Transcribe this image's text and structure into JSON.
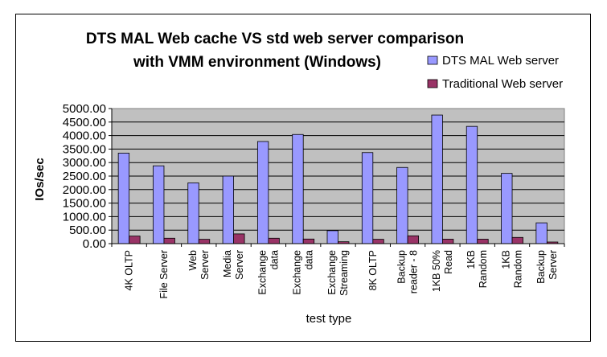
{
  "chart_data": {
    "type": "bar",
    "title_lines": [
      "DTS MAL Web cache VS std web server comparison",
      "with VMM environment (Windows)"
    ],
    "xlabel": "test type",
    "ylabel": "IOs/sec",
    "ylim": [
      0,
      5000
    ],
    "ytick_step": 500,
    "ytick_labels": [
      "0.00",
      "500.00",
      "1000.00",
      "1500.00",
      "2000.00",
      "2500.00",
      "3000.00",
      "3500.00",
      "4000.00",
      "4500.00",
      "5000.00"
    ],
    "grid": true,
    "legend_position": "top-right",
    "categories": [
      [
        "4K OLTP"
      ],
      [
        "File Server"
      ],
      [
        "Web",
        "Server"
      ],
      [
        "Media",
        "Server"
      ],
      [
        "Exchange",
        "data"
      ],
      [
        "Exchange",
        "data"
      ],
      [
        "Exchange",
        "Streaming"
      ],
      [
        "8K OLTP"
      ],
      [
        "Backup",
        "reader - 8"
      ],
      [
        "1KB 50%",
        "Read"
      ],
      [
        "1KB",
        "Random"
      ],
      [
        "1KB",
        "Random"
      ],
      [
        "Backup",
        "Server"
      ]
    ],
    "series": [
      {
        "name": "DTS MAL Web server",
        "color": "#9999ff",
        "values": [
          3350,
          2880,
          2250,
          2500,
          3780,
          4040,
          480,
          3370,
          2820,
          4760,
          4340,
          2600,
          770
        ]
      },
      {
        "name": "Traditional Web server",
        "color": "#993366",
        "values": [
          280,
          200,
          160,
          360,
          200,
          170,
          70,
          160,
          290,
          165,
          165,
          230,
          60
        ]
      }
    ],
    "plot_background": "#c0c0c0"
  }
}
